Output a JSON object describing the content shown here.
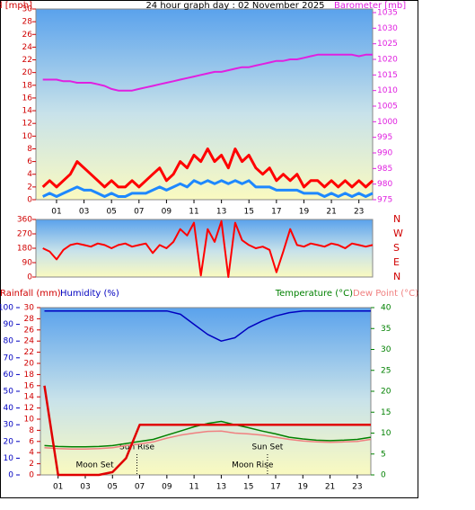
{
  "chart_data": [
    {
      "type": "line",
      "title": "24 hour graph day : 02 November 2025",
      "y_label": "Windspeed [mph]",
      "y2_label": "Barometer [mb]",
      "y_color": "#d00000",
      "y2_color": "#e020e0",
      "xlim": [
        -0.5,
        24
      ],
      "xticks": [
        {
          "value": 1,
          "label": "01"
        },
        {
          "value": 3,
          "label": "03"
        },
        {
          "value": 5,
          "label": "05"
        },
        {
          "value": 7,
          "label": "07"
        },
        {
          "value": 9,
          "label": "09"
        },
        11,
        13,
        15,
        17,
        19,
        21,
        23
      ],
      "ylim": [
        0,
        30
      ],
      "yticks": [
        0,
        2,
        4,
        6,
        8,
        10,
        12,
        14,
        16,
        18,
        20,
        22,
        24,
        26,
        28,
        30
      ],
      "y2lim": [
        975,
        1035
      ],
      "y2ticks": [
        975,
        980,
        985,
        990,
        995,
        1000,
        1005,
        1010,
        1015,
        1020,
        1025,
        1030,
        1035
      ],
      "x": [
        0,
        0.5,
        1,
        1.5,
        2,
        2.5,
        3,
        3.5,
        4,
        4.5,
        5,
        5.5,
        6,
        6.5,
        7,
        7.5,
        8,
        8.5,
        9,
        9.5,
        10,
        10.5,
        11,
        11.5,
        12,
        12.5,
        13,
        13.5,
        14,
        14.5,
        15,
        15.5,
        16,
        16.5,
        17,
        17.5,
        18,
        18.5,
        19,
        19.5,
        20,
        20.5,
        21,
        21.5,
        22,
        22.5,
        23,
        23.5,
        24
      ],
      "series": [
        {
          "color": "#ff0000",
          "width": 3,
          "values": [
            2,
            3,
            2,
            3,
            4,
            6,
            5,
            4,
            3,
            2,
            3,
            2,
            2,
            3,
            2,
            3,
            4,
            5,
            3,
            4,
            6,
            5,
            7,
            6,
            8,
            6,
            7,
            5,
            8,
            6,
            7,
            5,
            4,
            5,
            3,
            4,
            3,
            4,
            2,
            3,
            3,
            2,
            3,
            2,
            3,
            2,
            3,
            2,
            3
          ]
        },
        {
          "color": "#1e88ff",
          "width": 3,
          "values": [
            0.5,
            1,
            0.5,
            1,
            1.5,
            2,
            1.5,
            1.5,
            1,
            0.5,
            1,
            0.5,
            0.5,
            1,
            1,
            1,
            1.5,
            2,
            1.5,
            2,
            2.5,
            2,
            3,
            2.5,
            3,
            2.5,
            3,
            2.5,
            3,
            2.5,
            3,
            2,
            2,
            2,
            1.5,
            1.5,
            1.5,
            1.5,
            1,
            1,
            1,
            0.5,
            1,
            0.5,
            1,
            0.5,
            1,
            0.5,
            1
          ]
        },
        {
          "color": "#e020e0",
          "width": 2,
          "axis": "y2",
          "values": [
            1013.5,
            1013.5,
            1013.5,
            1013,
            1013,
            1012.5,
            1012.5,
            1012.5,
            1012,
            1011.5,
            1010.5,
            1010,
            1010,
            1010,
            1010.5,
            1011,
            1011.5,
            1012,
            1012.5,
            1013,
            1013.5,
            1014,
            1014.5,
            1015,
            1015.5,
            1016,
            1016,
            1016.5,
            1017,
            1017.5,
            1017.5,
            1018,
            1018.5,
            1019,
            1019.5,
            1019.5,
            1020,
            1020,
            1020.5,
            1021,
            1021.5,
            1021.5,
            1021.5,
            1021.5,
            1021.5,
            1021.5,
            1021,
            1021.5,
            1021.5
          ]
        }
      ]
    },
    {
      "type": "line",
      "xlim": [
        -0.5,
        24
      ],
      "ylim": [
        0,
        360
      ],
      "yticks": [
        0,
        90,
        180,
        270,
        360
      ],
      "y_color": "#d00000",
      "direction_labels": [
        "N",
        "W",
        "S",
        "E",
        "N"
      ],
      "x": [
        0,
        0.5,
        1,
        1.5,
        2,
        2.5,
        3,
        3.5,
        4,
        4.5,
        5,
        5.5,
        6,
        6.5,
        7,
        7.5,
        8,
        8.5,
        9,
        9.5,
        10,
        10.5,
        11,
        11.5,
        12,
        12.5,
        13,
        13.5,
        14,
        14.5,
        15,
        15.5,
        16,
        16.5,
        17,
        17.5,
        18,
        18.5,
        19,
        19.5,
        20,
        20.5,
        21,
        21.5,
        22,
        22.5,
        23,
        23.5,
        24
      ],
      "series": [
        {
          "color": "#ff0000",
          "width": 2,
          "values": [
            180,
            160,
            110,
            170,
            200,
            210,
            200,
            190,
            210,
            200,
            180,
            200,
            210,
            190,
            200,
            210,
            150,
            200,
            180,
            220,
            300,
            260,
            340,
            10,
            300,
            220,
            350,
            0,
            340,
            230,
            200,
            180,
            190,
            170,
            30,
            160,
            300,
            200,
            190,
            210,
            200,
            190,
            210,
            200,
            180,
            210,
            200,
            190,
            200
          ]
        }
      ]
    },
    {
      "type": "line",
      "xlim": [
        -0.3,
        24
      ],
      "xticks": [
        {
          "value": 1,
          "label": "01"
        },
        {
          "value": 3,
          "label": "03"
        },
        {
          "value": 5,
          "label": "05"
        },
        {
          "value": 7,
          "label": "07"
        },
        {
          "value": 9,
          "label": "09"
        },
        11,
        13,
        15,
        17,
        19,
        21,
        23
      ],
      "axes": {
        "humidity": {
          "label": "Humidity (%)",
          "color": "#0000c0",
          "lim": [
            0,
            100
          ],
          "ticks": [
            0,
            10,
            20,
            30,
            40,
            50,
            60,
            70,
            80,
            90,
            100
          ]
        },
        "rain": {
          "label": "Rainfall (mm)",
          "color": "#d00000",
          "lim": [
            0,
            30
          ],
          "ticks": [
            0,
            2,
            4,
            6,
            8,
            10,
            12,
            14,
            16,
            18,
            20,
            22,
            24,
            26,
            28,
            30
          ]
        },
        "temp": {
          "label": "Temperature (°C)",
          "color": "#008000",
          "lim": [
            0,
            40
          ],
          "ticks": [
            0,
            5,
            10,
            15,
            20,
            25,
            30,
            35,
            40
          ]
        },
        "dew": {
          "label": "Dew Point (°C)",
          "color": "#f08080"
        }
      },
      "x": [
        0,
        1,
        2,
        3,
        4,
        5,
        6,
        7,
        8,
        9,
        10,
        11,
        12,
        13,
        14,
        15,
        16,
        17,
        18,
        19,
        20,
        21,
        22,
        23,
        24
      ],
      "series": [
        {
          "axis": "humidity",
          "color": "#0000c0",
          "width": 1.5,
          "values": [
            98,
            98,
            98,
            98,
            98,
            98,
            98,
            98,
            98,
            98,
            96,
            90,
            84,
            80,
            82,
            88,
            92,
            95,
            97,
            98,
            98,
            98,
            98,
            98,
            98
          ]
        },
        {
          "axis": "temp",
          "color": "#008000",
          "width": 1.5,
          "values": [
            7,
            6.8,
            6.7,
            6.7,
            6.8,
            7,
            7.5,
            8,
            8.5,
            9.5,
            10.5,
            11.5,
            12.3,
            12.8,
            12,
            11.3,
            10.5,
            9.8,
            9,
            8.6,
            8.3,
            8.2,
            8.3,
            8.5,
            9
          ]
        },
        {
          "axis": "temp",
          "color": "#f08080",
          "width": 1.5,
          "values": [
            6.5,
            6.3,
            6.2,
            6.2,
            6.3,
            6.5,
            7,
            7.4,
            7.9,
            8.8,
            9.5,
            10,
            10.4,
            10.5,
            10,
            9.8,
            9.5,
            9,
            8.5,
            8.1,
            7.9,
            7.8,
            7.9,
            8,
            8.5
          ]
        },
        {
          "axis": "rain",
          "color": "#e00000",
          "width": 2.5,
          "values": [
            16,
            0,
            0,
            0,
            0,
            0.5,
            3,
            9,
            9,
            9,
            9,
            9,
            9,
            9,
            9,
            9,
            9,
            9,
            9,
            9,
            9,
            9,
            9,
            9,
            9
          ]
        }
      ],
      "annotations": [
        {
          "text": "Moon Set",
          "x": 3.7,
          "row": 2
        },
        {
          "text": "Sun Rise",
          "x": 6.8,
          "row": 1,
          "line": true
        },
        {
          "text": "Moon Rise",
          "x": 15.3,
          "row": 2
        },
        {
          "text": "Sun Set",
          "x": 16.4,
          "row": 1,
          "line": true
        }
      ]
    }
  ]
}
